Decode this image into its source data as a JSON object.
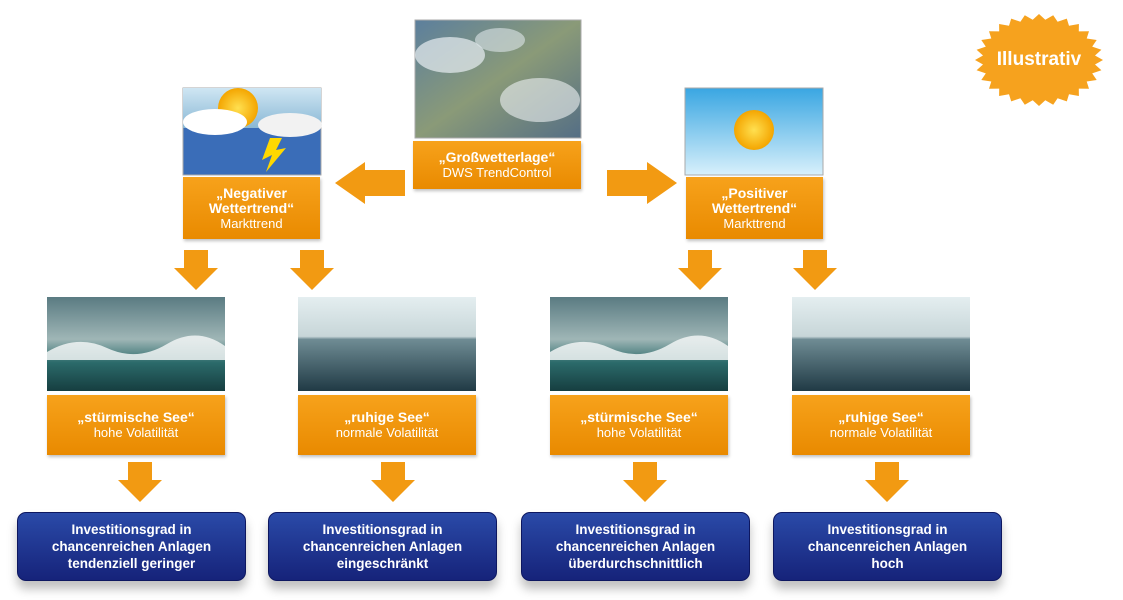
{
  "badge": "Illustrativ",
  "top": {
    "title": "„Großwetterlage“",
    "subtitle": "DWS TrendControl"
  },
  "trends": [
    {
      "title": [
        "„Negativer",
        "Wettertrend“"
      ],
      "subtitle": "Markttrend"
    },
    {
      "title": [
        "„Positiver",
        "Wettertrend“"
      ],
      "subtitle": "Markttrend"
    }
  ],
  "states": [
    {
      "title": "„stürmische See“",
      "subtitle": "hohe Volatilität"
    },
    {
      "title": "„ruhige See“",
      "subtitle": "normale Volatilität"
    },
    {
      "title": "„stürmische See“",
      "subtitle": "hohe Volatilität"
    },
    {
      "title": "„ruhige See“",
      "subtitle": "normale Volatilität"
    }
  ],
  "outcomes": [
    [
      "Investitionsgrad in",
      "chancenreichen Anlagen",
      "tendenziell geringer"
    ],
    [
      "Investitionsgrad in",
      "chancenreichen Anlagen",
      "eingeschränkt"
    ],
    [
      "Investitionsgrad in",
      "chancenreichen Anlagen",
      "überdurchschnittlich"
    ],
    [
      "Investitionsgrad in",
      "chancenreichen Anlagen",
      "hoch"
    ]
  ]
}
